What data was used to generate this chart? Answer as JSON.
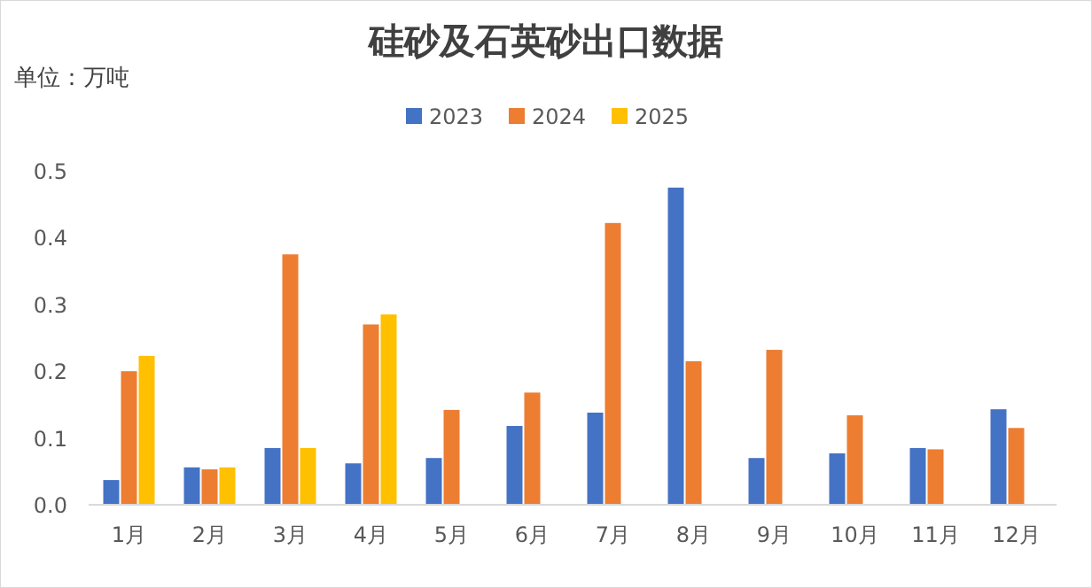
{
  "chart_data": {
    "type": "bar",
    "title": "硅砂及石英砂出口数据",
    "annotations": [
      "单位：万吨"
    ],
    "categories": [
      "1月",
      "2月",
      "3月",
      "4月",
      "5月",
      "6月",
      "7月",
      "8月",
      "9月",
      "10月",
      "11月",
      "12月"
    ],
    "series": [
      {
        "name": "2023",
        "color": "#4472c4",
        "values": [
          0.037,
          0.056,
          0.085,
          0.062,
          0.07,
          0.118,
          0.138,
          0.475,
          0.07,
          0.077,
          0.085,
          0.143
        ]
      },
      {
        "name": "2024",
        "color": "#ed7d31",
        "values": [
          0.2,
          0.053,
          0.375,
          0.27,
          0.142,
          0.168,
          0.422,
          0.215,
          0.232,
          0.134,
          0.083,
          0.115
        ]
      },
      {
        "name": "2025",
        "color": "#ffc000",
        "values": [
          0.223,
          0.056,
          0.085,
          0.285,
          null,
          null,
          null,
          null,
          null,
          null,
          null,
          null
        ]
      }
    ],
    "ylim": [
      0,
      0.5
    ],
    "yticks": [
      {
        "value": 0,
        "label": "0.0"
      },
      {
        "value": 0.1,
        "label": "0.1"
      },
      {
        "value": 0.2,
        "label": "0.2"
      },
      {
        "value": 0.3,
        "label": "0.3"
      },
      {
        "value": 0.4,
        "label": "0.4"
      },
      {
        "value": 0.5,
        "label": "0.5"
      }
    ],
    "grid": false,
    "legend": "top"
  }
}
